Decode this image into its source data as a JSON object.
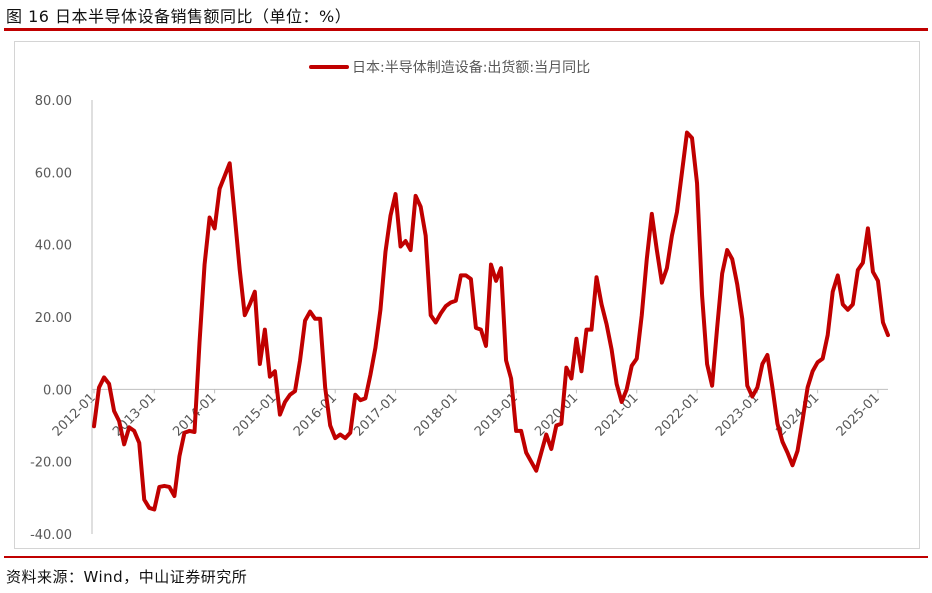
{
  "header": {
    "title": "图 16 日本半导体设备销售额同比（单位：%）"
  },
  "footer": {
    "source": "资料来源：Wind，中山证券研究所"
  },
  "colors": {
    "series": "#c00000",
    "rule": "#c00000",
    "axis": "#bfbfbf",
    "grid": "#e0e0e0",
    "tick_text": "#595959"
  },
  "chart_data": {
    "type": "line",
    "title": "",
    "xlabel": "",
    "ylabel": "",
    "ylim": [
      -40,
      80
    ],
    "y_ticks": [
      "80.00",
      "60.00",
      "40.00",
      "20.00",
      "0.00",
      "-20.00",
      "-40.00"
    ],
    "x_tick_labels": [
      "2012-01",
      "2013-01",
      "2014-01",
      "2015-01",
      "2016-01",
      "2017-01",
      "2018-01",
      "2019-01",
      "2020-01",
      "2021-01",
      "2022-01",
      "2023-01",
      "2024-01",
      "2025-01"
    ],
    "legend": {
      "position": "top-center"
    },
    "grid": false,
    "series": [
      {
        "name": "日本:半导体制造设备:出货额:当月同比",
        "x_start": "2012-01",
        "frequency": "monthly",
        "values": [
          -10.2,
          0.5,
          3.3,
          1.5,
          -6.0,
          -8.8,
          -15.2,
          -10.5,
          -11.5,
          -14.8,
          -30.5,
          -32.8,
          -33.2,
          -27.0,
          -26.7,
          -27.0,
          -29.5,
          -18.5,
          -12.0,
          -11.5,
          -11.8,
          13.0,
          34.5,
          47.5,
          44.5,
          55.5,
          59.0,
          62.5,
          48.0,
          33.0,
          20.5,
          23.5,
          27.0,
          7.0,
          16.5,
          3.5,
          5.0,
          -7.0,
          -3.5,
          -1.5,
          -0.5,
          8.0,
          19.0,
          21.5,
          19.5,
          19.5,
          0.5,
          -10.0,
          -13.5,
          -12.5,
          -13.5,
          -12.0,
          -1.5,
          -3.0,
          -2.5,
          4.0,
          11.5,
          22.0,
          38.0,
          48.0,
          54.0,
          39.5,
          41.0,
          38.5,
          53.5,
          50.5,
          42.5,
          20.5,
          18.5,
          21.0,
          23.0,
          24.0,
          24.5,
          31.5,
          31.5,
          30.5,
          17.0,
          16.5,
          12.0,
          34.5,
          30.0,
          33.5,
          8.0,
          3.0,
          -11.5,
          -11.5,
          -17.5,
          -20.0,
          -22.5,
          -17.5,
          -12.5,
          -16.5,
          -10.0,
          -9.5,
          6.0,
          3.0,
          14.0,
          5.0,
          16.5,
          16.5,
          31.0,
          23.5,
          18.0,
          11.0,
          1.5,
          -3.5,
          0.0,
          6.5,
          8.5,
          20.5,
          36.0,
          48.5,
          38.5,
          29.5,
          33.5,
          42.5,
          49.0,
          60.0,
          71.0,
          69.5,
          57.0,
          26.0,
          7.0,
          1.0,
          17.0,
          32.0,
          38.5,
          36.0,
          29.0,
          19.5,
          1.0,
          -2.0,
          0.5,
          7.0,
          9.5,
          0.5,
          -9.5,
          -14.5,
          -17.5,
          -21.0,
          -17.0,
          -8.5,
          0.5,
          5.0,
          7.5,
          8.5,
          15.0,
          27.0,
          31.5,
          23.5,
          22.0,
          23.5,
          33.0,
          35.0,
          44.5,
          32.5,
          30.0,
          18.5,
          15.0
        ]
      }
    ]
  }
}
